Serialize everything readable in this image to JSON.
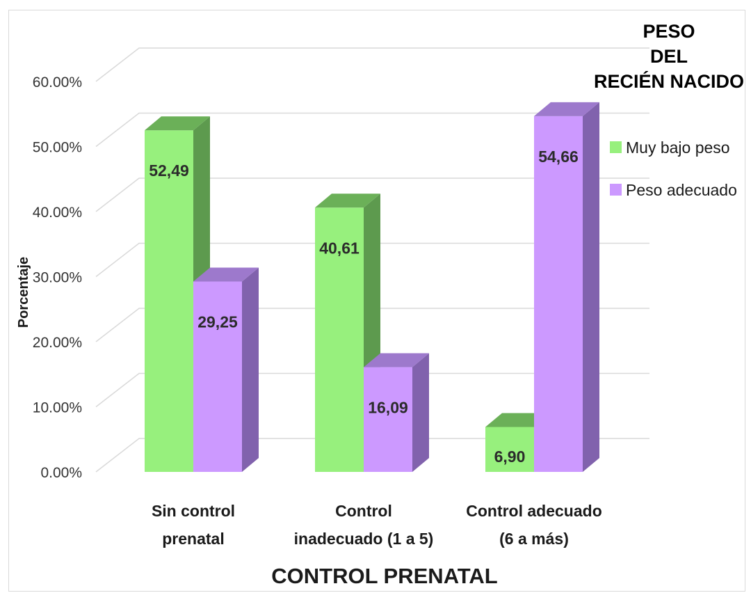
{
  "chart_data": {
    "type": "bar",
    "categories": [
      [
        "Sin control",
        "prenatal"
      ],
      [
        "Control",
        "inadecuado (1 a 5)"
      ],
      [
        "Control adecuado",
        "(6 a más)"
      ]
    ],
    "series": [
      {
        "name": "Muy bajo peso",
        "values": [
          52.49,
          40.61,
          6.9
        ],
        "labels": [
          "52,49",
          "40,61",
          "6,90"
        ],
        "color": "#97f07d",
        "side_color": "#5d9a4e",
        "top_color": "#6bb058"
      },
      {
        "name": "Peso adecuado",
        "values": [
          29.25,
          16.09,
          54.66
        ],
        "labels": [
          "29,25",
          "16,09",
          "54,66"
        ],
        "color": "#cc99ff",
        "side_color": "#8162ad",
        "top_color": "#9d79cc"
      }
    ],
    "y_ticks": [
      "0.00%",
      "10.00%",
      "20.00%",
      "30.00%",
      "40.00%",
      "50.00%",
      "60.00%"
    ],
    "ylim": [
      0,
      60
    ],
    "xlabel": "CONTROL PRENATAL",
    "ylabel": "Porcentaje",
    "legend_title": [
      "PESO",
      "DEL",
      "RECIÉN NACIDO"
    ],
    "legend_position": "right",
    "grid": true,
    "three_d": true
  }
}
